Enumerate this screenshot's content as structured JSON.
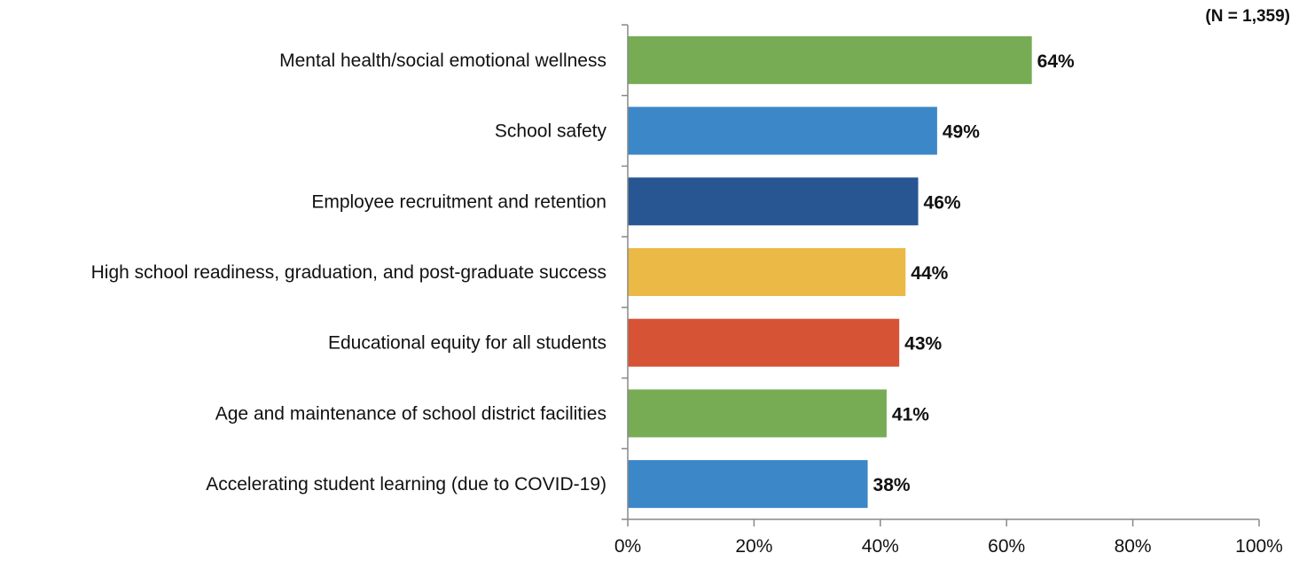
{
  "note": "(N = 1,359)",
  "chart_data": {
    "type": "bar",
    "orientation": "horizontal",
    "categories": [
      "Mental health/social emotional wellness",
      "School safety",
      "Employee recruitment and retention",
      "High school readiness, graduation, and post-graduate success",
      "Educational equity for all students",
      "Age and maintenance of school district facilities",
      "Accelerating student learning (due to COVID-19)"
    ],
    "values": [
      64,
      49,
      46,
      44,
      43,
      41,
      38
    ],
    "value_labels": [
      "64%",
      "49%",
      "46%",
      "44%",
      "43%",
      "41%",
      "38%"
    ],
    "colors": [
      "#77AC55",
      "#3B87C8",
      "#285693",
      "#EBB945",
      "#D75335",
      "#77AC55",
      "#3B87C8"
    ],
    "xlim": [
      0,
      100
    ],
    "xticks": [
      "0%",
      "20%",
      "40%",
      "60%",
      "80%",
      "100%"
    ],
    "title": "",
    "xlabel": "",
    "ylabel": "",
    "grid": false,
    "legend": "none"
  }
}
